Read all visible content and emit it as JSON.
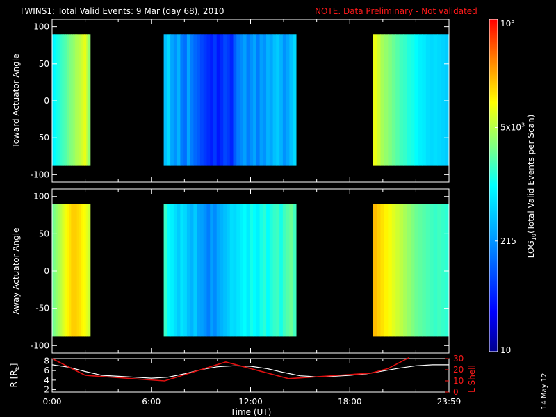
{
  "title": {
    "main": "TWINS1: Total Valid Events:  9 Mar (day  68), 2010",
    "note": "NOTE. Data Preliminary - Not validated"
  },
  "footer": {
    "date_stamp": "14 May 12"
  },
  "colors": {
    "background": "#000000",
    "axis": "#ffffff",
    "note": "#ff1a1a",
    "r_line": "#ffffff",
    "lshell_line": "#e01010"
  },
  "chart_data": [
    {
      "type": "heatmap",
      "name": "toward",
      "ylabel": "Toward Actuator Angle",
      "ylim": [
        -110,
        110
      ],
      "data_yrange": [
        -88,
        90
      ],
      "yticks": [
        100,
        50,
        0,
        -50,
        -100
      ],
      "ytick_labels": [
        "100",
        "50",
        "0",
        "-50",
        "-100"
      ],
      "xlim": [
        0,
        24
      ],
      "segments": [
        {
          "start_h": -0.3,
          "end_h": 2.3,
          "levels": [
            0.48,
            0.5,
            0.52,
            0.53,
            0.55,
            0.56,
            0.57,
            0.58,
            0.6,
            0.62,
            0.63,
            0.64,
            0.66,
            0.67,
            0.68,
            0.7,
            0.72,
            0.73,
            0.68,
            0.64
          ]
        },
        {
          "start_h": 6.75,
          "end_h": 14.75,
          "levels": [
            0.4,
            0.44,
            0.36,
            0.33,
            0.38,
            0.3,
            0.28,
            0.36,
            0.3,
            0.27,
            0.25,
            0.22,
            0.2,
            0.18,
            0.16,
            0.2,
            0.15,
            0.18,
            0.22,
            0.2,
            0.17,
            0.25,
            0.3,
            0.32,
            0.35,
            0.3,
            0.33,
            0.36,
            0.3,
            0.35,
            0.33,
            0.38,
            0.36,
            0.4,
            0.42,
            0.38,
            0.33,
            0.36,
            0.4,
            0.44
          ]
        },
        {
          "start_h": 19.4,
          "end_h": 23.98,
          "levels": [
            0.73,
            0.7,
            0.66,
            0.64,
            0.62,
            0.6,
            0.58,
            0.56,
            0.55,
            0.53,
            0.52,
            0.5,
            0.48,
            0.47,
            0.45,
            0.44,
            0.45,
            0.44,
            0.43,
            0.42
          ]
        }
      ]
    },
    {
      "type": "heatmap",
      "name": "away",
      "ylabel": "Away Actuator Angle",
      "ylim": [
        -110,
        110
      ],
      "data_yrange": [
        -88,
        90
      ],
      "yticks": [
        100,
        50,
        0,
        -50,
        -100
      ],
      "ytick_labels": [
        "100",
        "50",
        "0",
        "-50",
        "-100"
      ],
      "xlim": [
        0,
        24
      ],
      "segments": [
        {
          "start_h": -0.3,
          "end_h": 2.3,
          "levels": [
            0.6,
            0.62,
            0.64,
            0.66,
            0.68,
            0.7,
            0.72,
            0.74,
            0.76,
            0.78,
            0.8,
            0.8,
            0.8,
            0.79,
            0.78,
            0.76,
            0.75,
            0.74,
            0.72,
            0.7
          ]
        },
        {
          "start_h": 6.75,
          "end_h": 14.75,
          "levels": [
            0.55,
            0.5,
            0.48,
            0.45,
            0.42,
            0.46,
            0.44,
            0.4,
            0.38,
            0.42,
            0.36,
            0.35,
            0.33,
            0.3,
            0.35,
            0.32,
            0.36,
            0.38,
            0.4,
            0.42,
            0.45,
            0.44,
            0.46,
            0.48,
            0.5,
            0.47,
            0.52,
            0.5,
            0.48,
            0.52,
            0.54,
            0.5,
            0.53,
            0.55,
            0.56,
            0.52,
            0.56,
            0.58,
            0.6,
            0.56
          ]
        },
        {
          "start_h": 19.4,
          "end_h": 23.98,
          "levels": [
            0.82,
            0.8,
            0.78,
            0.76,
            0.74,
            0.72,
            0.7,
            0.68,
            0.66,
            0.64,
            0.62,
            0.6,
            0.59,
            0.58,
            0.57,
            0.56,
            0.55,
            0.56,
            0.55,
            0.54
          ]
        }
      ]
    },
    {
      "type": "line",
      "name": "orbit",
      "xlabel": "Time (UT)",
      "ylabel": "R [RE]",
      "ylabel_main": "R [R",
      "ylabel_sub": "E",
      "ylabel_end": "]",
      "xlim": [
        0,
        24
      ],
      "xticks": [
        0,
        6,
        12,
        18,
        24
      ],
      "xtick_labels": [
        "0:00",
        "6:00",
        "12:00",
        "18:00",
        "23:59"
      ],
      "ylim": [
        1.5,
        8.5
      ],
      "yticks": [
        2,
        4,
        6,
        8
      ],
      "ytick_labels": [
        "2",
        "4",
        "6",
        "8"
      ],
      "y2label": "L Shell",
      "y2lim": [
        0,
        30
      ],
      "y2ticks": [
        0,
        10,
        20,
        30
      ],
      "y2tick_labels": [
        "0",
        "10",
        "20",
        "30"
      ],
      "series": [
        {
          "name": "R",
          "axis": "left",
          "x": [
            0,
            1,
            2,
            3,
            4,
            5,
            6,
            7,
            8,
            9,
            10,
            11,
            12,
            13,
            14,
            15,
            16,
            17,
            18,
            19,
            20,
            21,
            22,
            23,
            24
          ],
          "y": [
            7.2,
            6.7,
            5.8,
            5.0,
            4.8,
            4.6,
            4.4,
            4.6,
            5.3,
            6.2,
            6.8,
            7.0,
            6.9,
            6.4,
            5.6,
            4.9,
            4.7,
            4.8,
            5.0,
            5.3,
            5.9,
            6.5,
            7.0,
            7.2,
            7.2
          ]
        },
        {
          "name": "L Shell",
          "axis": "right",
          "x": [
            0,
            2,
            6.8,
            10.5,
            14.3,
            19.3,
            20.3,
            21.6
          ],
          "y": [
            30,
            15,
            10,
            27,
            12,
            17,
            21,
            31
          ]
        }
      ]
    },
    {
      "type": "colorbar",
      "label": "LOG10(Total Valid Events per Scan)",
      "label_main": "LOG",
      "label_sub": "10",
      "label_rest": "(Total Valid Events per Scan)",
      "scale": "log",
      "range": [
        10,
        100000
      ],
      "ticks": [
        {
          "value": 10,
          "base": "10",
          "exp": ""
        },
        {
          "value": 215,
          "base": "215",
          "exp": ""
        },
        {
          "value": 5000,
          "base": "5x10",
          "exp": "3"
        },
        {
          "value": 100000,
          "base": "10",
          "exp": "5"
        }
      ]
    }
  ]
}
